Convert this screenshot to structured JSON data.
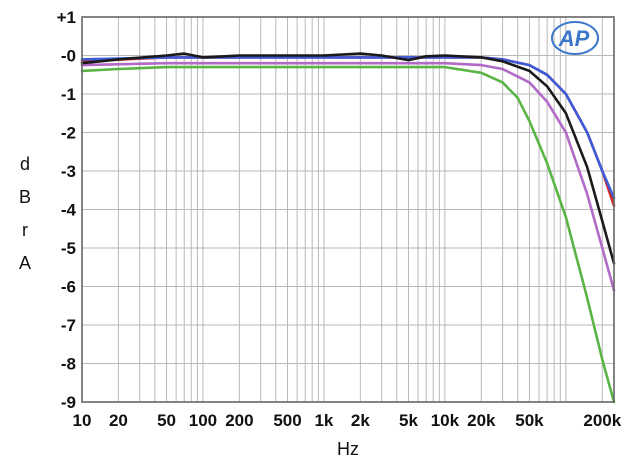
{
  "chart_data": {
    "type": "line",
    "xlabel": "Hz",
    "ylabel": "dBrA",
    "x_scale": "log",
    "xlim": [
      10,
      250000
    ],
    "ylim": [
      -9,
      1
    ],
    "grid": true,
    "x_ticks": [
      {
        "value": 10,
        "label": "10"
      },
      {
        "value": 20,
        "label": "20"
      },
      {
        "value": 50,
        "label": "50"
      },
      {
        "value": 100,
        "label": "100"
      },
      {
        "value": 200,
        "label": "200"
      },
      {
        "value": 500,
        "label": "500"
      },
      {
        "value": 1000,
        "label": "1k"
      },
      {
        "value": 2000,
        "label": "2k"
      },
      {
        "value": 5000,
        "label": "5k"
      },
      {
        "value": 10000,
        "label": "10k"
      },
      {
        "value": 20000,
        "label": "20k"
      },
      {
        "value": 50000,
        "label": "50k"
      },
      {
        "value": 200000,
        "label": "200k"
      }
    ],
    "y_ticks": [
      {
        "value": 1,
        "label": "+1"
      },
      {
        "value": 0,
        "label": "-0"
      },
      {
        "value": -1,
        "label": "-1"
      },
      {
        "value": -2,
        "label": "-2"
      },
      {
        "value": -3,
        "label": "-3"
      },
      {
        "value": -4,
        "label": "-4"
      },
      {
        "value": -5,
        "label": "-5"
      },
      {
        "value": -6,
        "label": "-6"
      },
      {
        "value": -7,
        "label": "-7"
      },
      {
        "value": -8,
        "label": "-8"
      },
      {
        "value": -9,
        "label": "-9"
      }
    ],
    "series": [
      {
        "color": "#d42a2a",
        "points": [
          [
            10,
            -0.15
          ],
          [
            50,
            -0.05
          ],
          [
            100,
            -0.05
          ],
          [
            1000,
            -0.05
          ],
          [
            10000,
            -0.05
          ],
          [
            20000,
            -0.05
          ],
          [
            30000,
            -0.1
          ],
          [
            50000,
            -0.25
          ],
          [
            70000,
            -0.5
          ],
          [
            100000,
            -1.0
          ],
          [
            150000,
            -2.0
          ],
          [
            200000,
            -3.0
          ],
          [
            250000,
            -3.9
          ]
        ]
      },
      {
        "color": "#3b5bd9",
        "points": [
          [
            10,
            -0.1
          ],
          [
            50,
            -0.05
          ],
          [
            100,
            -0.05
          ],
          [
            1000,
            -0.05
          ],
          [
            10000,
            -0.05
          ],
          [
            20000,
            -0.05
          ],
          [
            30000,
            -0.1
          ],
          [
            50000,
            -0.25
          ],
          [
            70000,
            -0.5
          ],
          [
            100000,
            -1.0
          ],
          [
            150000,
            -2.0
          ],
          [
            200000,
            -3.0
          ],
          [
            250000,
            -3.7
          ]
        ]
      },
      {
        "color": "#b26ac7",
        "points": [
          [
            10,
            -0.25
          ],
          [
            50,
            -0.2
          ],
          [
            100,
            -0.2
          ],
          [
            1000,
            -0.2
          ],
          [
            10000,
            -0.2
          ],
          [
            20000,
            -0.25
          ],
          [
            30000,
            -0.35
          ],
          [
            50000,
            -0.7
          ],
          [
            70000,
            -1.2
          ],
          [
            100000,
            -2.0
          ],
          [
            150000,
            -3.6
          ],
          [
            200000,
            -5.0
          ],
          [
            250000,
            -6.1
          ]
        ]
      },
      {
        "color": "#1a1a1a",
        "points": [
          [
            10,
            -0.2
          ],
          [
            20,
            -0.1
          ],
          [
            50,
            0.0
          ],
          [
            70,
            0.05
          ],
          [
            100,
            -0.05
          ],
          [
            200,
            0.0
          ],
          [
            1000,
            0.0
          ],
          [
            2000,
            0.05
          ],
          [
            3000,
            0.0
          ],
          [
            5000,
            -0.12
          ],
          [
            7000,
            -0.02
          ],
          [
            10000,
            0.0
          ],
          [
            20000,
            -0.05
          ],
          [
            30000,
            -0.15
          ],
          [
            50000,
            -0.4
          ],
          [
            70000,
            -0.8
          ],
          [
            100000,
            -1.5
          ],
          [
            150000,
            -2.9
          ],
          [
            200000,
            -4.3
          ],
          [
            250000,
            -5.4
          ]
        ]
      },
      {
        "color": "#5ab545",
        "points": [
          [
            10,
            -0.4
          ],
          [
            20,
            -0.35
          ],
          [
            50,
            -0.3
          ],
          [
            100,
            -0.3
          ],
          [
            1000,
            -0.3
          ],
          [
            10000,
            -0.3
          ],
          [
            20000,
            -0.45
          ],
          [
            30000,
            -0.7
          ],
          [
            40000,
            -1.1
          ],
          [
            50000,
            -1.7
          ],
          [
            70000,
            -2.8
          ],
          [
            100000,
            -4.2
          ],
          [
            150000,
            -6.3
          ],
          [
            200000,
            -7.9
          ],
          [
            250000,
            -9.0
          ]
        ]
      }
    ]
  },
  "logo": {
    "text": "AP"
  }
}
